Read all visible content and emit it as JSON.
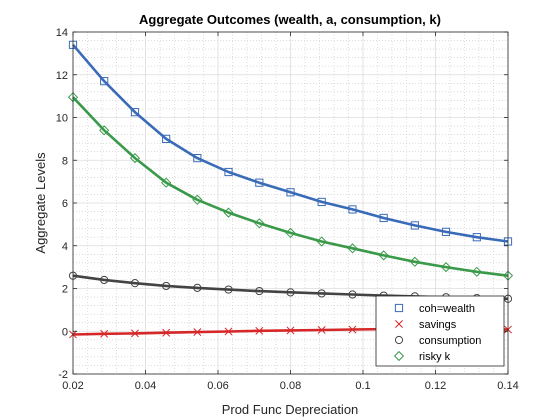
{
  "chart_data": {
    "type": "line",
    "title": "Aggregate Outcomes (wealth, a, consumption, k)",
    "xlabel": "Prod Func Depreciation",
    "ylabel": "Aggregate Levels",
    "xlim": [
      0.02,
      0.14
    ],
    "ylim": [
      -2,
      14
    ],
    "xticks": [
      0.02,
      0.04,
      0.06,
      0.08,
      0.1,
      0.12,
      0.14
    ],
    "xtick_labels": [
      "0.02",
      "0.04",
      "0.06",
      "0.08",
      "0.1",
      "0.12",
      "0.14"
    ],
    "yticks": [
      -2,
      0,
      2,
      4,
      6,
      8,
      10,
      12,
      14
    ],
    "ytick_labels": [
      "-2",
      "0",
      "2",
      "4",
      "6",
      "8",
      "10",
      "12",
      "14"
    ],
    "grid": true,
    "minor_grid": true,
    "legend_position": "bottom-right",
    "series": [
      {
        "name": "coh=wealth",
        "color": "#3a6bb8",
        "marker": "square",
        "x": [
          0.02,
          0.0286,
          0.0371,
          0.0457,
          0.0543,
          0.0629,
          0.0714,
          0.08,
          0.0886,
          0.0971,
          0.1057,
          0.1143,
          0.1229,
          0.1314,
          0.14
        ],
        "y": [
          13.4,
          11.7,
          10.25,
          9.0,
          8.1,
          7.45,
          6.95,
          6.5,
          6.05,
          5.7,
          5.3,
          4.95,
          4.65,
          4.4,
          4.2
        ]
      },
      {
        "name": "savings",
        "color": "#d62728",
        "marker": "x",
        "x": [
          0.02,
          0.0286,
          0.0371,
          0.0457,
          0.0543,
          0.0629,
          0.0714,
          0.08,
          0.0886,
          0.0971,
          0.1057,
          0.1143,
          0.1229,
          0.1314,
          0.14
        ],
        "y": [
          -0.15,
          -0.12,
          -0.1,
          -0.07,
          -0.04,
          -0.01,
          0.02,
          0.04,
          0.06,
          0.08,
          0.1,
          0.1,
          0.1,
          0.1,
          0.08
        ]
      },
      {
        "name": "consumption",
        "color": "#444444",
        "marker": "circle",
        "x": [
          0.02,
          0.0286,
          0.0371,
          0.0457,
          0.0543,
          0.0629,
          0.0714,
          0.08,
          0.0886,
          0.0971,
          0.1057,
          0.1143,
          0.1229,
          0.1314,
          0.14
        ],
        "y": [
          2.6,
          2.4,
          2.25,
          2.12,
          2.03,
          1.95,
          1.88,
          1.82,
          1.77,
          1.72,
          1.67,
          1.63,
          1.59,
          1.55,
          1.52
        ]
      },
      {
        "name": "risky k",
        "color": "#3a9a4a",
        "marker": "diamond",
        "x": [
          0.02,
          0.0286,
          0.0371,
          0.0457,
          0.0543,
          0.0629,
          0.0714,
          0.08,
          0.0886,
          0.0971,
          0.1057,
          0.1143,
          0.1229,
          0.1314,
          0.14
        ],
        "y": [
          10.95,
          9.4,
          8.1,
          6.95,
          6.15,
          5.55,
          5.05,
          4.6,
          4.2,
          3.88,
          3.55,
          3.25,
          3.0,
          2.78,
          2.6
        ]
      }
    ]
  }
}
